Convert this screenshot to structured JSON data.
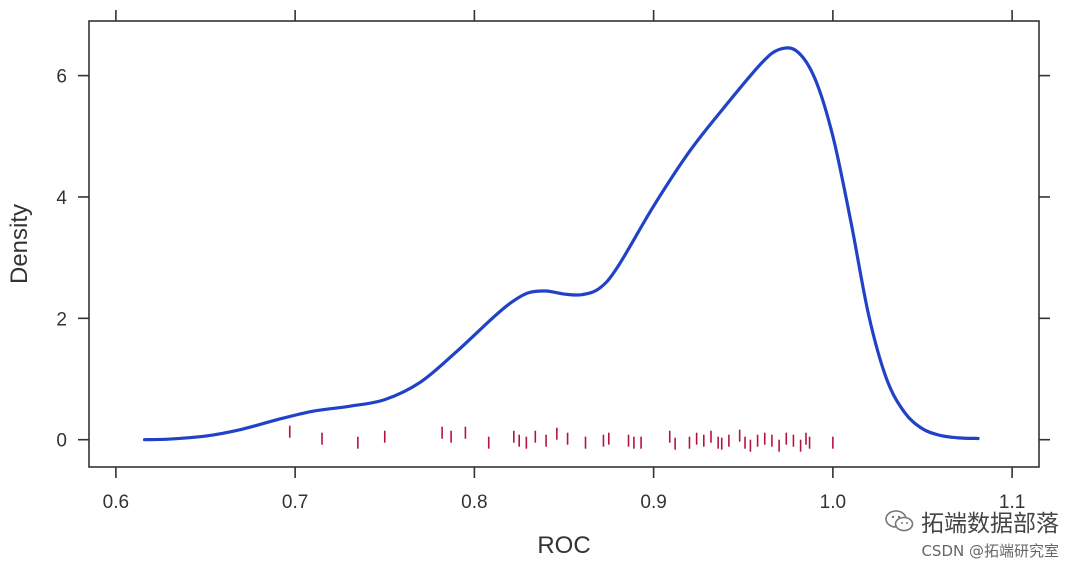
{
  "chart_data": {
    "type": "line",
    "xlabel": "ROC",
    "ylabel": "Density",
    "xlim": [
      0.585,
      1.115
    ],
    "ylim": [
      -0.45,
      6.9
    ],
    "x_ticks": [
      0.6,
      0.7,
      0.8,
      0.9,
      1.0,
      1.1
    ],
    "x_tick_labels": [
      "0.6",
      "0.7",
      "0.8",
      "0.9",
      "1.0",
      "1.1"
    ],
    "y_ticks": [
      0,
      2,
      4,
      6
    ],
    "y_tick_labels": [
      "0",
      "2",
      "4",
      "6"
    ],
    "grid": false,
    "series": [
      {
        "type": "density",
        "color": "#2142c8",
        "x": [
          0.616,
          0.63,
          0.65,
          0.67,
          0.69,
          0.71,
          0.73,
          0.75,
          0.77,
          0.79,
          0.81,
          0.82,
          0.83,
          0.84,
          0.85,
          0.86,
          0.87,
          0.88,
          0.9,
          0.92,
          0.94,
          0.96,
          0.97,
          0.98,
          0.99,
          1.0,
          1.01,
          1.02,
          1.03,
          1.04,
          1.05,
          1.06,
          1.07,
          1.081
        ],
        "y": [
          0.0,
          0.01,
          0.06,
          0.17,
          0.33,
          0.47,
          0.55,
          0.66,
          0.95,
          1.45,
          2.0,
          2.25,
          2.42,
          2.45,
          2.4,
          2.39,
          2.5,
          2.85,
          3.85,
          4.75,
          5.5,
          6.2,
          6.43,
          6.4,
          5.95,
          5.0,
          3.6,
          2.05,
          1.0,
          0.45,
          0.18,
          0.07,
          0.03,
          0.02
        ]
      },
      {
        "type": "rug",
        "color": "#b3143c",
        "x": [
          0.697,
          0.715,
          0.735,
          0.75,
          0.782,
          0.787,
          0.795,
          0.808,
          0.822,
          0.825,
          0.829,
          0.834,
          0.84,
          0.846,
          0.852,
          0.862,
          0.872,
          0.875,
          0.886,
          0.889,
          0.893,
          0.909,
          0.912,
          0.92,
          0.924,
          0.928,
          0.932,
          0.936,
          0.938,
          0.942,
          0.948,
          0.951,
          0.954,
          0.958,
          0.962,
          0.966,
          0.97,
          0.974,
          0.978,
          0.982,
          0.985,
          0.987,
          1.0
        ]
      }
    ]
  },
  "watermark": {
    "brand": "拓端数据部落",
    "subline": "CSDN @拓端研究室"
  }
}
